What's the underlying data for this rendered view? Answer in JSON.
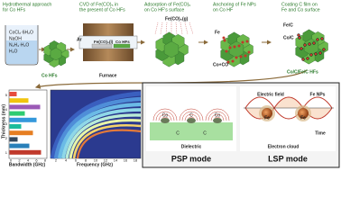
{
  "steps": [
    {
      "title": [
        "Hydrothermal approach",
        "for Co HFs"
      ],
      "reagents": [
        "CoCl₂·6H₂O",
        "NaOH",
        "N₂H₄·H₂O",
        "H₂O"
      ],
      "product": "Co HFs"
    },
    {
      "title": [
        "CVD of Fe(CO)₅ in",
        "the present of Co HFs"
      ],
      "gas": "Ar",
      "boat": "Fe(CO)₅(l)",
      "sample": "Co HFs",
      "caption": "Furnace"
    },
    {
      "title": [
        "Adsorption of Fe(CO)₅",
        "on Co HF's surface"
      ],
      "gas": "Fe(CO)₅(g)"
    },
    {
      "title": [
        "Anchoring of Fe NPs",
        "on Co HF"
      ],
      "labels": [
        "Fe",
        "Co+CO"
      ]
    },
    {
      "title": [
        "Coating C film on",
        "Fe and Co surface"
      ],
      "labels": [
        "Fe/C",
        "Co/C"
      ],
      "caption": "Co/C/Fe/C HFs"
    }
  ],
  "chart": {
    "y_label": "Thickness (mm)",
    "x_label": "Bandwidth (GHz)",
    "x2_label": "Frequency (GHz)",
    "yticks": [
      "5",
      "4",
      "3",
      "2",
      "1"
    ],
    "xticks": [
      "0",
      "2",
      "4",
      "6",
      "8"
    ],
    "x2ticks": [
      "2",
      "4",
      "6",
      "8",
      "10",
      "12",
      "14",
      "16",
      "18"
    ]
  },
  "modes": {
    "psp": {
      "title": "PSP mode",
      "dielectric": "Dielectric",
      "labels": [
        "Co",
        "C",
        "Co",
        "C",
        "C"
      ]
    },
    "lsp": {
      "title": "LSP mode",
      "field": "Electric field",
      "particles": "Fe NPs",
      "time": "Time",
      "cloud": "Electron cloud",
      "core": "Fe"
    }
  }
}
